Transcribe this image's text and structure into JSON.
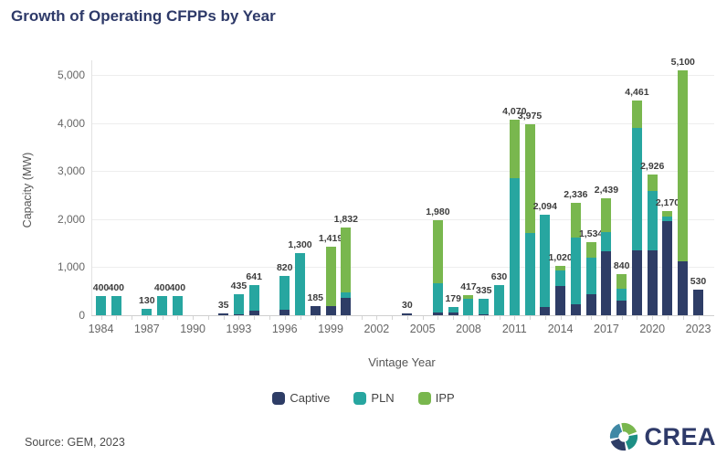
{
  "title": "Growth of Operating CFPPs by Year",
  "footer": {
    "source": "Source: GEM, 2023",
    "logo_text": "CREA"
  },
  "colors": {
    "captive": "#2e3d66",
    "pln": "#27a6a0",
    "ipp": "#79b74e",
    "title_navy": "#2e3a69"
  },
  "chart_data": {
    "type": "bar",
    "stacked": true,
    "title": "Growth of Operating CFPPs by Year",
    "xlabel": "Vintage Year",
    "ylabel": "Capacity (MW)",
    "ylim": [
      0,
      5500
    ],
    "yticks": [
      0,
      1000,
      2000,
      3000,
      4000,
      5000
    ],
    "xticks": [
      1984,
      1987,
      1990,
      1993,
      1996,
      1999,
      2002,
      2005,
      2008,
      2011,
      2014,
      2017,
      2020,
      2023
    ],
    "xrange": [
      1984,
      2023
    ],
    "grid": true,
    "legend": [
      "Captive",
      "PLN",
      "IPP"
    ],
    "legend_position": "bottom",
    "series_colors": {
      "Captive": "#2e3d66",
      "PLN": "#27a6a0",
      "IPP": "#79b74e"
    },
    "bars": [
      {
        "year": 1984,
        "captive": 0,
        "pln": 400,
        "ipp": 0,
        "total": 400,
        "label": "400"
      },
      {
        "year": 1985,
        "captive": 0,
        "pln": 400,
        "ipp": 0,
        "total": 400,
        "label": "400"
      },
      {
        "year": 1987,
        "captive": 0,
        "pln": 130,
        "ipp": 0,
        "total": 130,
        "label": "130"
      },
      {
        "year": 1988,
        "captive": 0,
        "pln": 400,
        "ipp": 0,
        "total": 400,
        "label": "400"
      },
      {
        "year": 1989,
        "captive": 0,
        "pln": 400,
        "ipp": 0,
        "total": 400,
        "label": "400"
      },
      {
        "year": 1992,
        "captive": 35,
        "pln": 0,
        "ipp": 0,
        "total": 35,
        "label": "35"
      },
      {
        "year": 1993,
        "captive": 25,
        "pln": 410,
        "ipp": 0,
        "total": 435,
        "label": "435"
      },
      {
        "year": 1994,
        "captive": 100,
        "pln": 541,
        "ipp": 0,
        "total": 641,
        "label": "641"
      },
      {
        "year": 1996,
        "captive": 120,
        "pln": 700,
        "ipp": 0,
        "total": 820,
        "label": "820"
      },
      {
        "year": 1997,
        "captive": 0,
        "pln": 1300,
        "ipp": 0,
        "total": 1300,
        "label": "1,300"
      },
      {
        "year": 1998,
        "captive": 185,
        "pln": 0,
        "ipp": 0,
        "total": 185,
        "label": "185"
      },
      {
        "year": 1999,
        "captive": 190,
        "pln": 0,
        "ipp": 1229,
        "total": 1419,
        "label": "1,419"
      },
      {
        "year": 2000,
        "captive": 360,
        "pln": 115,
        "ipp": 1357,
        "total": 1832,
        "label": "1,832"
      },
      {
        "year": 2004,
        "captive": 30,
        "pln": 0,
        "ipp": 0,
        "total": 30,
        "label": "30"
      },
      {
        "year": 2006,
        "captive": 60,
        "pln": 600,
        "ipp": 1320,
        "total": 1980,
        "label": "1,980"
      },
      {
        "year": 2007,
        "captive": 60,
        "pln": 119,
        "ipp": 0,
        "total": 179,
        "label": "179"
      },
      {
        "year": 2008,
        "captive": 0,
        "pln": 350,
        "ipp": 67,
        "total": 417,
        "label": "417"
      },
      {
        "year": 2009,
        "captive": 20,
        "pln": 315,
        "ipp": 0,
        "total": 335,
        "label": "335"
      },
      {
        "year": 2010,
        "captive": 0,
        "pln": 630,
        "ipp": 0,
        "total": 630,
        "label": "630"
      },
      {
        "year": 2011,
        "captive": 0,
        "pln": 2850,
        "ipp": 1220,
        "total": 4070,
        "label": "4,070"
      },
      {
        "year": 2012,
        "captive": 0,
        "pln": 1710,
        "ipp": 2265,
        "total": 3975,
        "label": "3,975"
      },
      {
        "year": 2013,
        "captive": 165,
        "pln": 1929,
        "ipp": 0,
        "total": 2094,
        "label": "2,094"
      },
      {
        "year": 2014,
        "captive": 600,
        "pln": 320,
        "ipp": 100,
        "total": 1020,
        "label": "1,020"
      },
      {
        "year": 2015,
        "captive": 230,
        "pln": 1390,
        "ipp": 716,
        "total": 2336,
        "label": "2,336"
      },
      {
        "year": 2016,
        "captive": 440,
        "pln": 764,
        "ipp": 330,
        "total": 1534,
        "label": "1,534"
      },
      {
        "year": 2017,
        "captive": 1340,
        "pln": 400,
        "ipp": 699,
        "total": 2439,
        "label": "2,439"
      },
      {
        "year": 2018,
        "captive": 300,
        "pln": 240,
        "ipp": 300,
        "total": 840,
        "label": "840"
      },
      {
        "year": 2019,
        "captive": 1345,
        "pln": 2551,
        "ipp": 565,
        "total": 4461,
        "label": "4,461"
      },
      {
        "year": 2020,
        "captive": 1345,
        "pln": 1231,
        "ipp": 350,
        "total": 2926,
        "label": "2,926"
      },
      {
        "year": 2021,
        "captive": 1960,
        "pln": 100,
        "ipp": 110,
        "total": 2170,
        "label": "2,170"
      },
      {
        "year": 2022,
        "captive": 1120,
        "pln": 0,
        "ipp": 3980,
        "total": 5100,
        "label": "5,100"
      },
      {
        "year": 2023,
        "captive": 530,
        "pln": 0,
        "ipp": 0,
        "total": 530,
        "label": "530"
      }
    ]
  }
}
